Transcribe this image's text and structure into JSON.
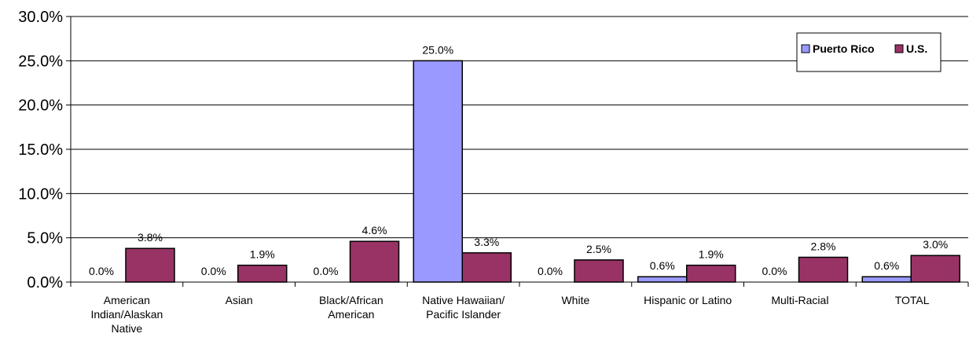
{
  "chart_data": {
    "type": "bar",
    "categories": [
      "American Indian/Alaskan Native",
      "Asian",
      "Black/African American",
      "Native Hawaiian/ Pacific Islander",
      "White",
      "Hispanic or Latino",
      "Multi-Racial",
      "TOTAL"
    ],
    "category_lines": [
      [
        "American",
        "Indian/Alaskan",
        "Native"
      ],
      [
        "Asian"
      ],
      [
        "Black/African",
        "American"
      ],
      [
        "Native Hawaiian/",
        "Pacific Islander"
      ],
      [
        "White"
      ],
      [
        "Hispanic or Latino"
      ],
      [
        "Multi-Racial"
      ],
      [
        "TOTAL"
      ]
    ],
    "series": [
      {
        "name": "Puerto Rico",
        "color": "#9999ff",
        "values": [
          0.0,
          0.0,
          0.0,
          25.0,
          0.0,
          0.6,
          0.0,
          0.6
        ],
        "labels": [
          "0.0%",
          "0.0%",
          "0.0%",
          "25.0%",
          "0.0%",
          "0.6%",
          "0.0%",
          "0.6%"
        ]
      },
      {
        "name": "U.S.",
        "color": "#993366",
        "values": [
          3.8,
          1.9,
          4.6,
          3.3,
          2.5,
          1.9,
          2.8,
          3.0
        ],
        "labels": [
          "3.8%",
          "1.9%",
          "4.6%",
          "3.3%",
          "2.5%",
          "1.9%",
          "2.8%",
          "3.0%"
        ]
      }
    ],
    "yticks": [
      0,
      5,
      10,
      15,
      20,
      25,
      30
    ],
    "ytick_labels": [
      "0.0%",
      "5.0%",
      "10.0%",
      "15.0%",
      "20.0%",
      "25.0%",
      "30.0%"
    ],
    "ylim": [
      0,
      30
    ],
    "grid": true,
    "legend": "top-right",
    "title": "",
    "xlabel": "",
    "ylabel": ""
  }
}
